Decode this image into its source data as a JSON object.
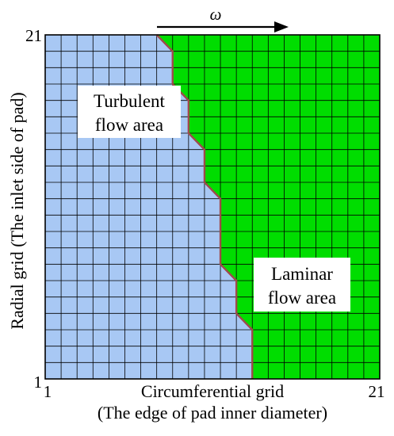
{
  "diagram": {
    "rotation_symbol": "ω",
    "y_axis": {
      "label": "Radial grid (The inlet side of pad)",
      "tick_min": "1",
      "tick_max": "21"
    },
    "x_axis": {
      "label_line1": "Circumferential grid",
      "label_line2": "(The edge of pad inner diameter)",
      "tick_min": "1",
      "tick_max": "21"
    },
    "regions": {
      "turbulent": {
        "line1": "Turbulent",
        "line2": "flow area",
        "color": "#a8c8f4"
      },
      "laminar": {
        "line1": "Laminar",
        "line2": "flow area",
        "color": "#00dd00"
      }
    },
    "boundary_color": "#9e4a4a",
    "grid_color": "#000000",
    "grid_cells": 21,
    "boundary_points": [
      [
        7,
        21
      ],
      [
        8,
        20
      ],
      [
        8,
        18
      ],
      [
        9,
        17
      ],
      [
        9,
        15
      ],
      [
        10,
        14
      ],
      [
        10,
        12
      ],
      [
        11,
        11
      ],
      [
        11,
        7
      ],
      [
        12,
        6
      ],
      [
        12,
        4
      ],
      [
        13,
        3
      ],
      [
        13,
        0
      ]
    ]
  }
}
